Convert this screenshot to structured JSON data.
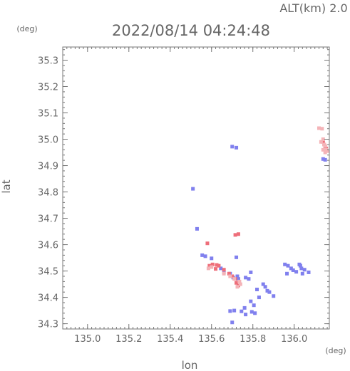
{
  "header": {
    "alt_label": "ALT(km)  2.0",
    "timestamp": "2022/08/14 04:24:48"
  },
  "chart_data": {
    "type": "scatter",
    "xlabel": "lon",
    "ylabel": "lat",
    "x_unit": "(deg)",
    "y_unit": "(deg)",
    "xlim": [
      134.88,
      136.17
    ],
    "ylim": [
      34.28,
      35.35
    ],
    "x_ticks": [
      135.0,
      135.2,
      135.4,
      135.6,
      135.8,
      136.0
    ],
    "y_ticks": [
      34.3,
      34.4,
      34.5,
      34.6,
      34.7,
      34.8,
      34.9,
      35.0,
      35.1,
      35.2,
      35.3
    ],
    "colors": {
      "approaching": "#8080ee",
      "receding": "#ee6e7a",
      "receding_light": "#f4b4b8"
    },
    "series": [
      {
        "color_key": "approaching",
        "points": [
          [
            135.7,
            34.972
          ],
          [
            135.72,
            34.968
          ],
          [
            135.51,
            34.812
          ],
          [
            135.53,
            34.66
          ],
          [
            135.57,
            34.556
          ],
          [
            135.555,
            34.56
          ],
          [
            135.6,
            34.548
          ],
          [
            135.645,
            34.51
          ],
          [
            135.66,
            34.495
          ],
          [
            135.69,
            34.49
          ],
          [
            135.705,
            34.475
          ],
          [
            135.72,
            34.552
          ],
          [
            135.765,
            34.475
          ],
          [
            135.79,
            34.495
          ],
          [
            135.78,
            34.47
          ],
          [
            135.82,
            34.43
          ],
          [
            135.85,
            34.45
          ],
          [
            135.86,
            34.44
          ],
          [
            135.87,
            34.425
          ],
          [
            135.88,
            34.42
          ],
          [
            135.9,
            34.405
          ],
          [
            135.83,
            34.4
          ],
          [
            135.79,
            34.385
          ],
          [
            135.805,
            34.37
          ],
          [
            135.76,
            34.36
          ],
          [
            135.81,
            34.34
          ],
          [
            135.765,
            34.335
          ],
          [
            135.69,
            34.348
          ],
          [
            135.71,
            34.35
          ],
          [
            135.745,
            34.347
          ],
          [
            135.795,
            34.345
          ],
          [
            135.7,
            34.305
          ],
          [
            135.955,
            34.525
          ],
          [
            135.97,
            34.52
          ],
          [
            135.985,
            34.51
          ],
          [
            135.995,
            34.503
          ],
          [
            136.01,
            34.497
          ],
          [
            136.025,
            34.525
          ],
          [
            136.03,
            34.52
          ],
          [
            136.035,
            34.51
          ],
          [
            136.05,
            34.505
          ],
          [
            136.04,
            34.49
          ],
          [
            135.965,
            34.49
          ],
          [
            136.07,
            34.495
          ],
          [
            136.15,
            34.922
          ],
          [
            136.14,
            34.925
          ],
          [
            135.73,
            34.47
          ],
          [
            135.725,
            34.48
          ]
        ]
      },
      {
        "color_key": "receding",
        "points": [
          [
            135.715,
            34.637
          ],
          [
            135.73,
            34.64
          ],
          [
            135.58,
            34.605
          ],
          [
            135.59,
            34.52
          ],
          [
            135.605,
            34.525
          ],
          [
            135.625,
            34.523
          ],
          [
            135.635,
            34.52
          ],
          [
            135.66,
            34.505
          ],
          [
            135.685,
            34.49
          ],
          [
            135.7,
            34.48
          ],
          [
            135.715,
            34.47
          ],
          [
            135.72,
            34.455
          ],
          [
            135.73,
            34.445
          ],
          [
            135.62,
            34.508
          ],
          [
            136.145,
            34.98
          ],
          [
            136.15,
            34.97
          ],
          [
            136.14,
            34.99
          ],
          [
            136.155,
            34.965
          ]
        ]
      },
      {
        "color_key": "receding_light",
        "points": [
          [
            136.12,
            35.042
          ],
          [
            136.135,
            35.04
          ],
          [
            136.13,
            34.99
          ],
          [
            136.14,
            35.0
          ],
          [
            136.145,
            34.98
          ],
          [
            136.15,
            34.975
          ],
          [
            136.155,
            34.96
          ],
          [
            136.16,
            34.955
          ],
          [
            136.15,
            34.95
          ],
          [
            136.14,
            34.96
          ],
          [
            135.66,
            34.49
          ],
          [
            135.69,
            34.48
          ],
          [
            135.71,
            34.47
          ],
          [
            135.735,
            34.46
          ],
          [
            135.6,
            34.515
          ],
          [
            135.585,
            34.51
          ],
          [
            135.74,
            34.45
          ],
          [
            135.725,
            34.44
          ]
        ]
      }
    ]
  }
}
